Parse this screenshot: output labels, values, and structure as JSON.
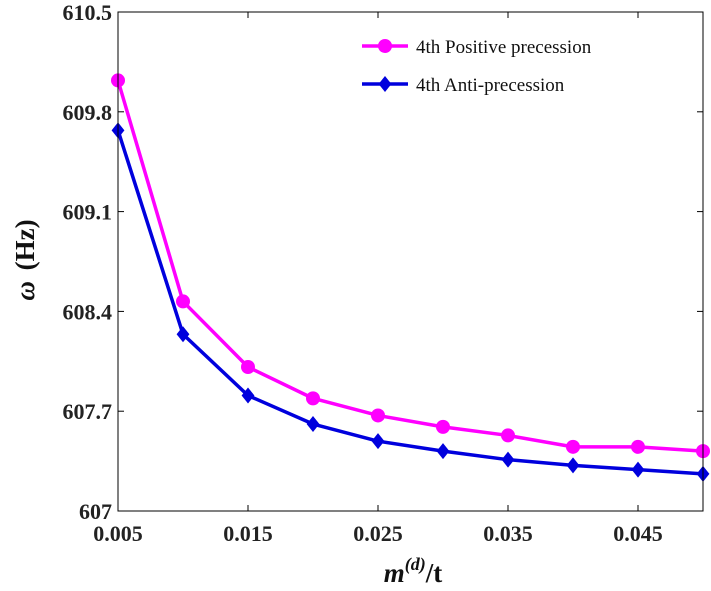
{
  "chart_data": {
    "type": "line",
    "title": "",
    "xlabel": "m^(d)/t",
    "xlabel_base": "m",
    "xlabel_sup": "(d)",
    "xlabel_tail": "/t",
    "ylabel": "ω (Hz)",
    "ylabel_symbol": "ω",
    "ylabel_unit": "(Hz)",
    "xlim": [
      0.005,
      0.05
    ],
    "ylim": [
      607,
      610.5
    ],
    "xticks": [
      "0.005",
      "0.015",
      "0.025",
      "0.035",
      "0.045"
    ],
    "xtick_values": [
      0.005,
      0.015,
      0.025,
      0.035,
      0.045
    ],
    "yticks": [
      "607",
      "607.7",
      "608.4",
      "609.1",
      "609.8",
      "610.5"
    ],
    "ytick_values": [
      607,
      607.7,
      608.4,
      609.1,
      609.8,
      610.5
    ],
    "grid": false,
    "legend_position": "top-right",
    "x": [
      0.005,
      0.01,
      0.015,
      0.02,
      0.025,
      0.03,
      0.035,
      0.04,
      0.045,
      0.05
    ],
    "series": [
      {
        "name": "4th Positive precession",
        "color": "#ff00ff",
        "marker": "circle",
        "values": [
          610.02,
          608.47,
          608.01,
          607.79,
          607.67,
          607.59,
          607.53,
          607.45,
          607.45,
          607.42
        ]
      },
      {
        "name": "4th Anti-precession",
        "color": "#0000dd",
        "marker": "diamond",
        "values": [
          609.67,
          608.24,
          607.81,
          607.61,
          607.49,
          607.42,
          607.36,
          607.32,
          607.29,
          607.26
        ]
      }
    ]
  }
}
